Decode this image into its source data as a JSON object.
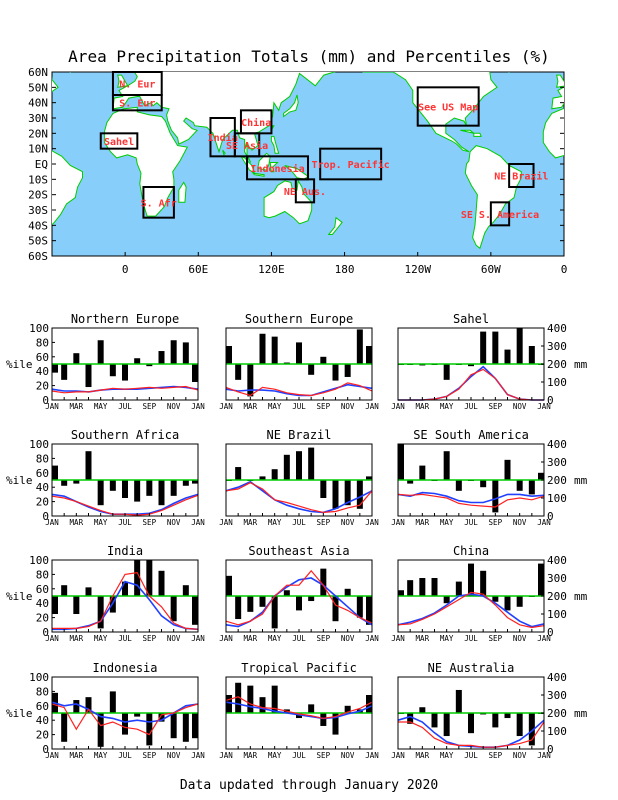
{
  "title": "Area Precipitation Totals (mm) and Percentiles (%)",
  "footer": "Data updated through January 2020",
  "colors": {
    "ocean": "#87cefa",
    "land": "#ffffff",
    "coast": "#00cc00",
    "box": "#000000",
    "region_label": "#ff3333",
    "bar": "#000000",
    "threshold": "#00cc00",
    "actual_line": "#ff2020",
    "normal_line": "#2040ff"
  },
  "map": {
    "lat_labels": [
      "60N",
      "50N",
      "40N",
      "30N",
      "20N",
      "10N",
      "EQ",
      "10S",
      "20S",
      "30S",
      "40S",
      "50S",
      "60S"
    ],
    "lon_labels": [
      "0",
      "60E",
      "120E",
      "180",
      "120W",
      "60W",
      "0"
    ],
    "regions": [
      {
        "label": "N. Eur",
        "lon": [
          -10,
          30
        ],
        "lat": [
          45,
          60
        ]
      },
      {
        "label": "S. Eur",
        "lon": [
          -10,
          30
        ],
        "lat": [
          35,
          45
        ]
      },
      {
        "label": "Sahel",
        "lon": [
          -20,
          10
        ],
        "lat": [
          10,
          20
        ]
      },
      {
        "label": "S. Afr",
        "lon": [
          15,
          40
        ],
        "lat": [
          -35,
          -15
        ]
      },
      {
        "label": "India",
        "lon": [
          70,
          90
        ],
        "lat": [
          5,
          30
        ]
      },
      {
        "label": "China",
        "lon": [
          95,
          120
        ],
        "lat": [
          20,
          35
        ]
      },
      {
        "label": "SE Asia",
        "lon": [
          90,
          110
        ],
        "lat": [
          5,
          20
        ]
      },
      {
        "label": "Indonesia",
        "lon": [
          100,
          150
        ],
        "lat": [
          -10,
          5
        ]
      },
      {
        "label": "Trop. Pacific",
        "lon": [
          160,
          210
        ],
        "lat": [
          -10,
          10
        ]
      },
      {
        "label": "NE Aus.",
        "lon": [
          140,
          155
        ],
        "lat": [
          -25,
          -10
        ]
      },
      {
        "label": "See US Map",
        "lon": [
          240,
          290
        ],
        "lat": [
          25,
          50
        ]
      },
      {
        "label": "NE Brazil",
        "lon": [
          315,
          335
        ],
        "lat": [
          -15,
          0
        ]
      },
      {
        "label": "SE S. America",
        "lon": [
          300,
          315
        ],
        "lat": [
          -40,
          -25
        ]
      }
    ]
  },
  "axis": {
    "months": [
      "JAN",
      "MAR",
      "MAY",
      "JUL",
      "SEP",
      "NOV",
      "JAN"
    ],
    "pct_ticks": [
      "0",
      "20",
      "40",
      "60",
      "80",
      "100"
    ],
    "mm_ticks": [
      "0",
      "100",
      "200",
      "300",
      "400"
    ],
    "pct_label": "%ile",
    "mm_label": "mm"
  },
  "chart_data": [
    {
      "type": "bar+line",
      "title": "Northern Europe",
      "percentiles": [
        38,
        28,
        65,
        18,
        83,
        33,
        27,
        58,
        47,
        68,
        83,
        80,
        25
      ],
      "actual_mm": [
        50,
        40,
        45,
        45,
        55,
        65,
        60,
        65,
        70,
        65,
        70,
        75,
        55
      ],
      "normal_mm": [
        60,
        50,
        50,
        45,
        55,
        60,
        60,
        60,
        65,
        70,
        75,
        70,
        60
      ]
    },
    {
      "type": "bar+line",
      "title": "Southern Europe",
      "percentiles": [
        75,
        28,
        5,
        92,
        88,
        52,
        80,
        35,
        60,
        27,
        32,
        98,
        75
      ],
      "actual_mm": [
        70,
        45,
        25,
        70,
        60,
        40,
        30,
        25,
        40,
        60,
        95,
        80,
        50
      ],
      "normal_mm": [
        60,
        50,
        55,
        55,
        50,
        35,
        25,
        25,
        45,
        65,
        85,
        75,
        65
      ]
    },
    {
      "type": "bar+line",
      "title": "Sahel",
      "percentiles": [
        50,
        50,
        48,
        50,
        28,
        50,
        47,
        95,
        95,
        70,
        100,
        75,
        50
      ],
      "actual_mm": [
        0,
        0,
        0,
        5,
        20,
        60,
        140,
        170,
        120,
        30,
        5,
        0,
        0
      ],
      "normal_mm": [
        0,
        0,
        0,
        5,
        20,
        65,
        130,
        185,
        120,
        30,
        5,
        0,
        0
      ]
    },
    {
      "type": "bar+line",
      "title": "Southern Africa",
      "percentiles": [
        70,
        42,
        45,
        90,
        15,
        35,
        25,
        20,
        28,
        15,
        28,
        42,
        45
      ],
      "actual_mm": [
        110,
        100,
        80,
        55,
        30,
        10,
        10,
        5,
        10,
        30,
        60,
        90,
        115
      ],
      "normal_mm": [
        120,
        110,
        80,
        50,
        25,
        10,
        10,
        10,
        15,
        35,
        70,
        100,
        120
      ]
    },
    {
      "type": "bar+line",
      "title": "NE Brazil",
      "percentiles": [
        50,
        68,
        50,
        55,
        65,
        85,
        90,
        95,
        25,
        10,
        15,
        10,
        55
      ],
      "actual_mm": [
        140,
        150,
        185,
        150,
        90,
        75,
        55,
        35,
        20,
        25,
        45,
        60,
        140
      ],
      "normal_mm": [
        140,
        160,
        190,
        140,
        90,
        60,
        40,
        25,
        20,
        40,
        75,
        105,
        140
      ]
    },
    {
      "type": "bar+line",
      "title": "SE South America",
      "percentiles": [
        100,
        45,
        70,
        50,
        90,
        35,
        50,
        40,
        5,
        78,
        35,
        30,
        60
      ],
      "actual_mm": [
        120,
        115,
        120,
        110,
        100,
        70,
        60,
        55,
        50,
        90,
        100,
        90,
        110
      ],
      "normal_mm": [
        120,
        110,
        130,
        125,
        110,
        85,
        75,
        75,
        95,
        120,
        120,
        110,
        115
      ]
    },
    {
      "type": "bar+line",
      "title": "India",
      "percentiles": [
        25,
        65,
        25,
        62,
        5,
        27,
        70,
        100,
        100,
        85,
        15,
        65,
        10
      ],
      "actual_mm": [
        20,
        20,
        20,
        30,
        60,
        200,
        320,
        330,
        200,
        140,
        50,
        20,
        15
      ],
      "normal_mm": [
        15,
        15,
        20,
        35,
        60,
        160,
        280,
        260,
        180,
        90,
        40,
        20,
        15
      ]
    },
    {
      "type": "bar+line",
      "title": "Southeast Asia",
      "percentiles": [
        78,
        18,
        28,
        35,
        5,
        58,
        30,
        43,
        88,
        15,
        60,
        20,
        10
      ],
      "actual_mm": [
        60,
        40,
        60,
        100,
        200,
        260,
        260,
        340,
        260,
        150,
        120,
        80,
        50
      ],
      "normal_mm": [
        40,
        30,
        60,
        110,
        200,
        250,
        290,
        300,
        260,
        200,
        140,
        80,
        40
      ]
    },
    {
      "type": "bar+line",
      "title": "China",
      "percentiles": [
        58,
        72,
        75,
        75,
        40,
        70,
        95,
        85,
        42,
        30,
        35,
        50,
        95
      ],
      "actual_mm": [
        40,
        45,
        70,
        100,
        140,
        180,
        220,
        210,
        150,
        80,
        40,
        25,
        35
      ],
      "normal_mm": [
        40,
        55,
        75,
        105,
        150,
        200,
        210,
        200,
        160,
        110,
        60,
        30,
        45
      ]
    },
    {
      "type": "bar+line",
      "title": "Indonesia",
      "percentiles": [
        78,
        10,
        68,
        72,
        3,
        80,
        20,
        45,
        5,
        38,
        15,
        10,
        15
      ],
      "actual_mm": [
        250,
        230,
        110,
        220,
        130,
        150,
        120,
        110,
        80,
        190,
        200,
        230,
        250
      ],
      "normal_mm": [
        260,
        240,
        250,
        220,
        180,
        170,
        150,
        160,
        150,
        160,
        200,
        240,
        250
      ]
    },
    {
      "type": "bar+line",
      "title": "Tropical Pacific",
      "percentiles": [
        75,
        92,
        88,
        72,
        88,
        55,
        43,
        62,
        32,
        20,
        60,
        55,
        75
      ],
      "actual_mm": [
        270,
        290,
        250,
        230,
        225,
        210,
        195,
        185,
        170,
        180,
        205,
        225,
        260
      ],
      "normal_mm": [
        260,
        250,
        235,
        225,
        210,
        200,
        190,
        180,
        170,
        175,
        195,
        210,
        240
      ]
    },
    {
      "type": "bar+line",
      "title": "NE Australia",
      "percentiles": [
        50,
        35,
        58,
        30,
        18,
        82,
        22,
        48,
        30,
        43,
        18,
        5,
        50
      ],
      "actual_mm": [
        150,
        150,
        120,
        60,
        30,
        20,
        20,
        10,
        10,
        20,
        30,
        50,
        150
      ],
      "normal_mm": [
        160,
        180,
        150,
        90,
        40,
        20,
        15,
        10,
        10,
        20,
        50,
        100,
        160
      ]
    }
  ]
}
